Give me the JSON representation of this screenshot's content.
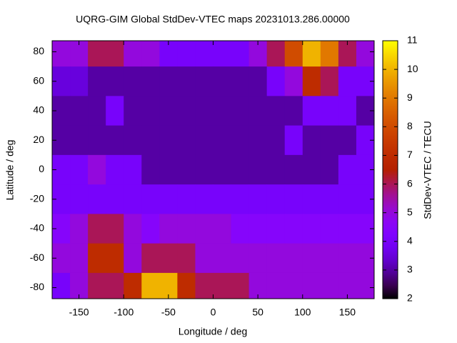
{
  "chart_data": {
    "type": "heatmap",
    "title": "UQRG-GIM Global StdDev-VTEC maps 20231013.286.00000",
    "x_label": "Longitude / deg",
    "y_label": "Latitude / deg",
    "colorbar_label": "StdDev-VTEC / TECU",
    "x": [
      -170,
      -150,
      -130,
      -110,
      -90,
      -70,
      -50,
      -30,
      -10,
      10,
      30,
      50,
      70,
      90,
      110,
      130,
      150,
      170
    ],
    "y": [
      80,
      60,
      40,
      20,
      0,
      -20,
      -40,
      -60,
      -80
    ],
    "values": [
      [
        5,
        5,
        6,
        6,
        5,
        5,
        4,
        4,
        4,
        4,
        4,
        5,
        6,
        8,
        10,
        9,
        6,
        5
      ],
      [
        3.5,
        3.5,
        3,
        3,
        3,
        3,
        3,
        3,
        3,
        3,
        3,
        3,
        4,
        5,
        7,
        6,
        4,
        4
      ],
      [
        3,
        3,
        3,
        4,
        3,
        3,
        3,
        3,
        3,
        3,
        3,
        3,
        3,
        3,
        4,
        4,
        4,
        3
      ],
      [
        3,
        3,
        3,
        3,
        3,
        3,
        3,
        3,
        3,
        3,
        3,
        3,
        3,
        4,
        3,
        3,
        3,
        4
      ],
      [
        4,
        4,
        5,
        4,
        4,
        3,
        3,
        3,
        3,
        3,
        3,
        3,
        3,
        3,
        3,
        3,
        4,
        4
      ],
      [
        4,
        4,
        4,
        4,
        4,
        4,
        4,
        4,
        4,
        4,
        4,
        4,
        4,
        4,
        4,
        4,
        4,
        4
      ],
      [
        4.5,
        5,
        6,
        6,
        5,
        4.5,
        5,
        5,
        5,
        5,
        4.5,
        4.5,
        4.5,
        4.5,
        4.5,
        4.5,
        4.5,
        4.5
      ],
      [
        5,
        5,
        7,
        7,
        5,
        6,
        6,
        6,
        5,
        5,
        5,
        5,
        5,
        5,
        5,
        5,
        5,
        5
      ],
      [
        4,
        5,
        6,
        6,
        7,
        10,
        10,
        7,
        6,
        6,
        6,
        5,
        5,
        5,
        5,
        5,
        5,
        5
      ]
    ],
    "xlim": [
      -180,
      180
    ],
    "xticks": [
      -150,
      -100,
      -50,
      0,
      50,
      100,
      150
    ],
    "ylim": [
      -87.5,
      87.5
    ],
    "yticks": [
      -80,
      -60,
      -40,
      -20,
      0,
      20,
      40,
      60,
      80
    ],
    "cblim": [
      2,
      11
    ],
    "cbticks": [
      2,
      3,
      4,
      5,
      6,
      7,
      8,
      9,
      10,
      11
    ]
  }
}
